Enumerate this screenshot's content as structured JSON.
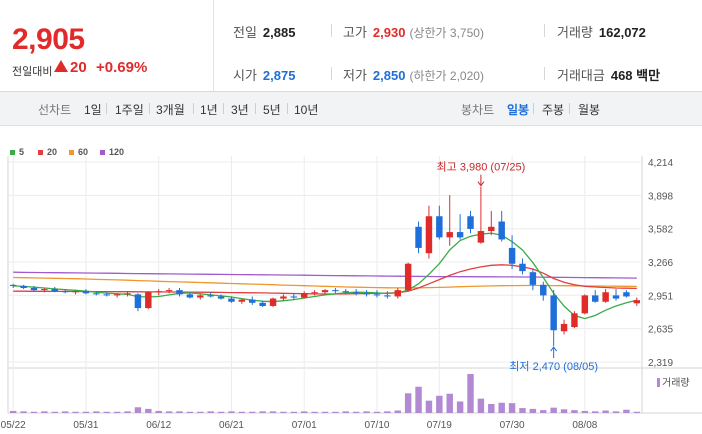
{
  "header": {
    "price": "2,905",
    "change_label": "전일대비",
    "change_value": "20",
    "change_pct": "+0.69%",
    "prev_close": {
      "label": "전일",
      "value": "2,885"
    },
    "high": {
      "label": "고가",
      "value": "2,930",
      "sub": "(상한가 3,750)"
    },
    "volume": {
      "label": "거래량",
      "value": "162,072"
    },
    "open": {
      "label": "시가",
      "value": "2,875"
    },
    "low": {
      "label": "저가",
      "value": "2,850",
      "sub": "(하한가 2,020)"
    },
    "amount": {
      "label": "거래대금",
      "value": "468 백만"
    }
  },
  "toolbar": {
    "line_chart_label": "선차트",
    "line_periods": [
      "1일",
      "1주일",
      "3개월",
      "1년",
      "3년",
      "5년",
      "10년"
    ],
    "candle_chart_label": "봉차트",
    "candle_periods": [
      "일봉",
      "주봉",
      "월봉"
    ],
    "active_candle": "일봉"
  },
  "legend": [
    {
      "name": "5",
      "color": "#3cab4a"
    },
    {
      "name": "20",
      "color": "#e04040"
    },
    {
      "name": "60",
      "color": "#f0962c"
    },
    {
      "name": "120",
      "color": "#a05ccc"
    }
  ],
  "volume_legend": "거래량",
  "colors": {
    "up": "#e12b2b",
    "down": "#1e6fd9",
    "grid": "#ececec"
  },
  "chart_data": {
    "type": "candlestick",
    "y_ticks": [
      "4,214",
      "3,898",
      "3,582",
      "3,266",
      "2,951",
      "2,635",
      "2,319"
    ],
    "y_range": [
      2319,
      4214
    ],
    "x_ticks": [
      "05/22",
      "05/31",
      "06/12",
      "06/21",
      "07/01",
      "07/10",
      "07/19",
      "07/30",
      "08/08"
    ],
    "x_tick_index": [
      0,
      7,
      14,
      21,
      28,
      35,
      41,
      48,
      55
    ],
    "annotations": {
      "high": {
        "text": "최고 3,980 (07/25)",
        "value": 3980,
        "index": 45
      },
      "low": {
        "text": "최저 2,470 (08/05)",
        "value": 2470,
        "index": 52
      }
    },
    "candles": [
      [
        3050,
        3060,
        3020,
        3040
      ],
      [
        3040,
        3050,
        3010,
        3020
      ],
      [
        3020,
        3040,
        2990,
        3000
      ],
      [
        3000,
        3020,
        2980,
        3010
      ],
      [
        3010,
        3030,
        2980,
        2990
      ],
      [
        2990,
        3010,
        2970,
        2980
      ],
      [
        2980,
        3000,
        2960,
        2990
      ],
      [
        2990,
        3010,
        2960,
        2970
      ],
      [
        2970,
        2990,
        2950,
        2960
      ],
      [
        2960,
        2980,
        2940,
        2950
      ],
      [
        2950,
        2970,
        2930,
        2960
      ],
      [
        2960,
        2990,
        2940,
        2970
      ],
      [
        2960,
        2970,
        2800,
        2830
      ],
      [
        2830,
        2990,
        2820,
        2980
      ],
      [
        2980,
        3010,
        2950,
        2990
      ],
      [
        2990,
        3020,
        2970,
        3000
      ],
      [
        3000,
        3020,
        2940,
        2960
      ],
      [
        2960,
        2980,
        2920,
        2930
      ],
      [
        2930,
        2960,
        2910,
        2950
      ],
      [
        2950,
        2980,
        2930,
        2940
      ],
      [
        2940,
        2960,
        2910,
        2920
      ],
      [
        2920,
        2940,
        2880,
        2890
      ],
      [
        2890,
        2920,
        2870,
        2910
      ],
      [
        2910,
        2940,
        2860,
        2880
      ],
      [
        2880,
        2900,
        2840,
        2850
      ],
      [
        2850,
        2930,
        2840,
        2920
      ],
      [
        2920,
        2960,
        2900,
        2940
      ],
      [
        2940,
        2970,
        2910,
        2930
      ],
      [
        2930,
        2990,
        2920,
        2970
      ],
      [
        2970,
        3000,
        2950,
        2980
      ],
      [
        2980,
        3010,
        2960,
        3000
      ],
      [
        3000,
        3020,
        2970,
        2990
      ],
      [
        2990,
        3010,
        2960,
        2980
      ],
      [
        2980,
        3010,
        2950,
        2970
      ],
      [
        2970,
        3000,
        2940,
        2960
      ],
      [
        2960,
        3000,
        2930,
        2950
      ],
      [
        2950,
        2990,
        2920,
        2940
      ],
      [
        2940,
        3020,
        2920,
        3000
      ],
      [
        3000,
        3260,
        2990,
        3250
      ],
      [
        3600,
        3650,
        3350,
        3400
      ],
      [
        3350,
        3800,
        3300,
        3700
      ],
      [
        3700,
        3800,
        3480,
        3500
      ],
      [
        3500,
        3900,
        3420,
        3550
      ],
      [
        3550,
        3720,
        3480,
        3500
      ],
      [
        3700,
        3750,
        3540,
        3580
      ],
      [
        3450,
        3980,
        3440,
        3560
      ],
      [
        3560,
        3750,
        3520,
        3600
      ],
      [
        3650,
        3750,
        3460,
        3480
      ],
      [
        3400,
        3520,
        3200,
        3250
      ],
      [
        3250,
        3300,
        3150,
        3180
      ],
      [
        3170,
        3200,
        3000,
        3050
      ],
      [
        3050,
        3080,
        2900,
        2950
      ],
      [
        2950,
        3000,
        2470,
        2620
      ],
      [
        2610,
        2720,
        2580,
        2680
      ],
      [
        2650,
        2800,
        2640,
        2780
      ],
      [
        2780,
        2960,
        2770,
        2950
      ],
      [
        2950,
        3000,
        2880,
        2890
      ],
      [
        2890,
        3010,
        2880,
        2980
      ],
      [
        2950,
        3010,
        2900,
        2920
      ],
      [
        2980,
        3000,
        2930,
        2940
      ],
      [
        2875,
        2930,
        2850,
        2905
      ]
    ],
    "volume": [
      5,
      4,
      3,
      4,
      3,
      4,
      3,
      3,
      4,
      3,
      3,
      4,
      14,
      10,
      5,
      4,
      4,
      3,
      3,
      4,
      3,
      4,
      3,
      3,
      4,
      4,
      3,
      3,
      4,
      3,
      3,
      3,
      4,
      3,
      4,
      3,
      4,
      6,
      48,
      64,
      30,
      42,
      47,
      28,
      95,
      35,
      22,
      25,
      24,
      12,
      10,
      7,
      13,
      9,
      7,
      5,
      4,
      6,
      4,
      8,
      3
    ],
    "ma5": [
      3040,
      3035,
      3028,
      3020,
      3012,
      3005,
      2998,
      2990,
      2980,
      2972,
      2965,
      2960,
      2938,
      2935,
      2940,
      2955,
      2970,
      2975,
      2965,
      2955,
      2945,
      2935,
      2920,
      2905,
      2895,
      2890,
      2900,
      2910,
      2925,
      2940,
      2955,
      2965,
      2975,
      2980,
      2978,
      2974,
      2968,
      2975,
      3000,
      3060,
      3150,
      3250,
      3380,
      3470,
      3510,
      3530,
      3540,
      3520,
      3460,
      3380,
      3260,
      3120,
      2970,
      2850,
      2760,
      2730,
      2760,
      2810,
      2850,
      2880,
      2905
    ],
    "ma20": [
      2990,
      2990,
      2989,
      2989,
      2988,
      2988,
      2987,
      2987,
      2986,
      2986,
      2985,
      2985,
      2984,
      2983,
      2983,
      2982,
      2982,
      2981,
      2980,
      2979,
      2978,
      2977,
      2976,
      2975,
      2974,
      2972,
      2970,
      2968,
      2966,
      2964,
      2963,
      2963,
      2964,
      2966,
      2968,
      2970,
      2972,
      2976,
      2990,
      3020,
      3060,
      3100,
      3140,
      3175,
      3200,
      3220,
      3235,
      3240,
      3235,
      3220,
      3200,
      3160,
      3110,
      3075,
      3050,
      3035,
      3030,
      3025,
      3020,
      3018,
      3016
    ],
    "ma60": [
      3120,
      3118,
      3116,
      3114,
      3112,
      3110,
      3108,
      3105,
      3102,
      3100,
      3097,
      3094,
      3090,
      3087,
      3084,
      3081,
      3078,
      3075,
      3072,
      3069,
      3066,
      3063,
      3060,
      3057,
      3054,
      3051,
      3048,
      3045,
      3042,
      3039,
      3036,
      3033,
      3030,
      3028,
      3026,
      3024,
      3022,
      3021,
      3021,
      3022,
      3024,
      3026,
      3029,
      3032,
      3035,
      3038,
      3040,
      3042,
      3043,
      3044,
      3044,
      3044,
      3043,
      3042,
      3041,
      3040,
      3039,
      3038,
      3037,
      3036,
      3035
    ],
    "ma120": [
      3170,
      3168,
      3167,
      3166,
      3165,
      3164,
      3163,
      3162,
      3161,
      3160,
      3159,
      3158,
      3157,
      3156,
      3155,
      3154,
      3153,
      3152,
      3151,
      3150,
      3149,
      3148,
      3147,
      3146,
      3145,
      3144,
      3143,
      3142,
      3141,
      3140,
      3139,
      3138,
      3137,
      3136,
      3135,
      3134,
      3133,
      3132,
      3131,
      3130,
      3129,
      3128,
      3128,
      3127,
      3127,
      3126,
      3126,
      3125,
      3125,
      3124,
      3124,
      3123,
      3122,
      3121,
      3120,
      3119,
      3118,
      3117,
      3116,
      3115,
      3114
    ]
  }
}
